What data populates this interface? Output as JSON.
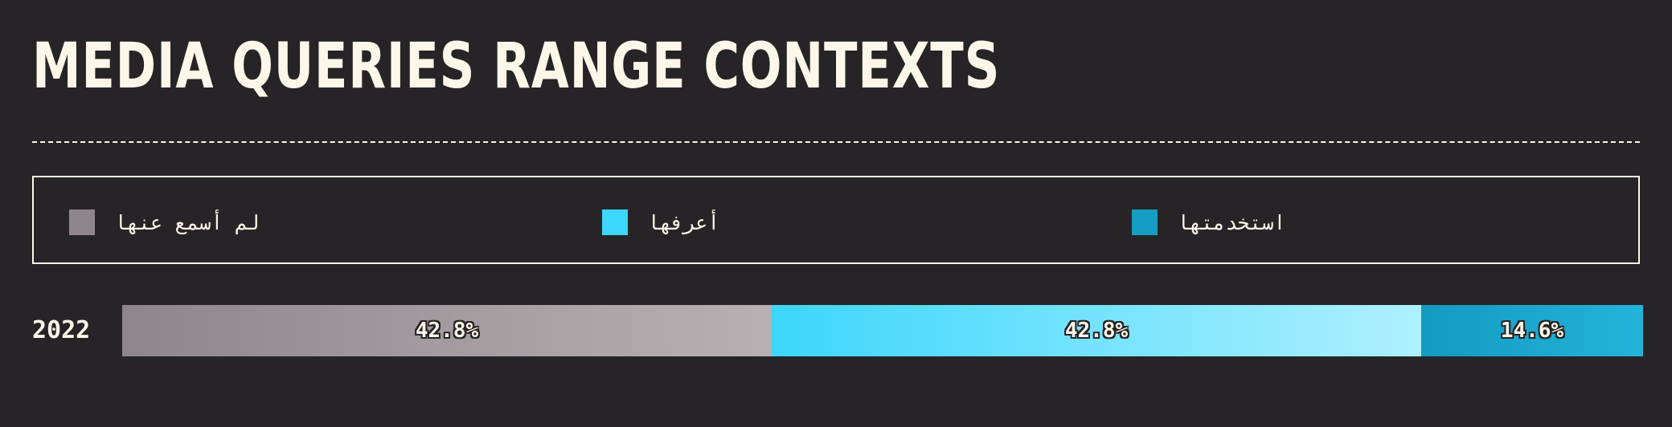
{
  "title": "MEDIA QUERIES RANGE CONTEXTS",
  "legend": [
    {
      "label": "لم أسمع عنها",
      "color": "#8f868c"
    },
    {
      "label": "أعرفها",
      "color": "#3dd6fc"
    },
    {
      "label": "استخدمتها",
      "color": "#159dc3"
    }
  ],
  "chart_data": {
    "type": "bar",
    "orientation": "horizontal",
    "stacked": true,
    "normalized": true,
    "title": "MEDIA QUERIES RANGE CONTEXTS",
    "categories": [
      "2022"
    ],
    "series": [
      {
        "name": "لم أسمع عنها",
        "values": [
          42.8
        ],
        "label": "42.8%",
        "color_start": "#8f868c",
        "color_end": "#b9b0b3"
      },
      {
        "name": "أعرفها",
        "values": [
          42.8
        ],
        "label": "42.8%",
        "color_start": "#3dd6fc",
        "color_end": "#aef0ff"
      },
      {
        "name": "استخدمتها",
        "values": [
          14.6
        ],
        "label": "14.6%",
        "color_start": "#139ac0",
        "color_end": "#23b4db"
      }
    ],
    "xlim": [
      0,
      100
    ],
    "legend_position": "top"
  }
}
